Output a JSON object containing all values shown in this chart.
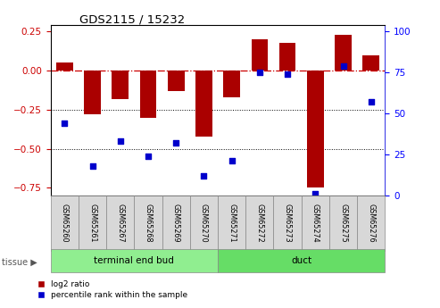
{
  "title": "GDS2115 / 15232",
  "samples": [
    "GSM65260",
    "GSM65261",
    "GSM65267",
    "GSM65268",
    "GSM65269",
    "GSM65270",
    "GSM65271",
    "GSM65272",
    "GSM65273",
    "GSM65274",
    "GSM65275",
    "GSM65276"
  ],
  "log2_ratio": [
    0.05,
    -0.28,
    -0.18,
    -0.3,
    -0.13,
    -0.42,
    -0.17,
    0.2,
    0.18,
    -0.75,
    0.23,
    0.1
  ],
  "percentile_rank": [
    44,
    18,
    33,
    24,
    32,
    12,
    21,
    75,
    74,
    1,
    79,
    57
  ],
  "tissue_groups": [
    {
      "label": "terminal end bud",
      "start": 0,
      "end": 6,
      "color": "#90EE90"
    },
    {
      "label": "duct",
      "start": 6,
      "end": 12,
      "color": "#66DD66"
    }
  ],
  "bar_color": "#AA0000",
  "dot_color": "#0000CC",
  "ylim_left": [
    -0.8,
    0.295
  ],
  "ylim_right": [
    0,
    104.167
  ],
  "yticks_left": [
    -0.75,
    -0.5,
    -0.25,
    0,
    0.25
  ],
  "yticks_right": [
    0,
    25,
    50,
    75,
    100
  ],
  "hline_zero_color": "#CC0000",
  "hline_dotted_vals": [
    -0.25,
    -0.5
  ],
  "background_color": "#ffffff",
  "legend_red_label": "log2 ratio",
  "legend_blue_label": "percentile rank within the sample",
  "tissue_label": "tissue",
  "bar_width": 0.6
}
